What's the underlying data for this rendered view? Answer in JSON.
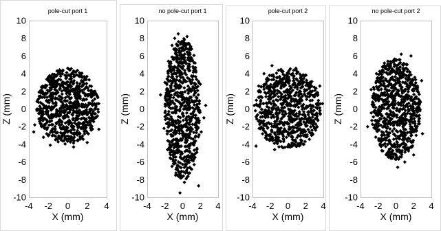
{
  "chart_data": [
    {
      "type": "scatter",
      "title": "pole-cut port 1",
      "xlabel": "X (mm)",
      "ylabel": "Z (mm)",
      "xlim": [
        -4,
        4
      ],
      "ylim": [
        -10,
        10
      ],
      "x_ticks": [
        "-4",
        "-2",
        "0",
        "2",
        "4"
      ],
      "y_ticks": [
        "10",
        "8",
        "6",
        "4",
        "2",
        "0",
        "-2",
        "-4",
        "-6",
        "-8",
        "-10"
      ],
      "grid": false,
      "marker": "filled diamond",
      "marker_color": "#000000",
      "cloud": {
        "x_center": 0.0,
        "x_spread": 3.2,
        "z_center": 0.3,
        "z_spread": 4.3
      },
      "points": [
        [
          -3.4,
          -1.8
        ],
        [
          -3.1,
          1.0
        ],
        [
          -2.9,
          -0.5
        ],
        [
          -2.6,
          2.4
        ],
        [
          -2.5,
          -3.2
        ],
        [
          -2.2,
          0.3
        ],
        [
          -2.0,
          3.6
        ],
        [
          -1.8,
          -4.1
        ],
        [
          -1.6,
          1.7
        ],
        [
          -1.3,
          -2.0
        ],
        [
          -1.1,
          4.3
        ],
        [
          -0.9,
          -0.8
        ],
        [
          -0.6,
          2.9
        ],
        [
          -0.4,
          -3.6
        ],
        [
          -0.2,
          0.9
        ],
        [
          0.0,
          4.6
        ],
        [
          0.2,
          -1.4
        ],
        [
          0.4,
          3.1
        ],
        [
          0.6,
          -4.3
        ],
        [
          0.8,
          0.2
        ],
        [
          1.0,
          2.2
        ],
        [
          1.2,
          -2.7
        ],
        [
          1.4,
          4.0
        ],
        [
          1.6,
          -0.3
        ],
        [
          1.8,
          1.5
        ],
        [
          2.0,
          -3.8
        ],
        [
          2.2,
          3.3
        ],
        [
          2.5,
          -1.1
        ],
        [
          2.8,
          2.0
        ],
        [
          3.0,
          0.6
        ],
        [
          3.2,
          -2.3
        ],
        [
          -3.5,
          -2.6
        ]
      ]
    },
    {
      "type": "scatter",
      "title": "no pole-cut port 1",
      "xlabel": "X (mm)",
      "ylabel": "Z (mm)",
      "xlim": [
        -4,
        4
      ],
      "ylim": [
        -10,
        10
      ],
      "x_ticks": [
        "-4",
        "-2",
        "0",
        "2",
        "4"
      ],
      "y_ticks": [
        "10",
        "8",
        "6",
        "4",
        "2",
        "0",
        "-2",
        "-4",
        "-6",
        "-8",
        "-10"
      ],
      "grid": false,
      "marker": "filled diamond",
      "marker_color": "#000000",
      "cloud": {
        "x_center": 0.0,
        "x_spread": 2.0,
        "z_center": 0.0,
        "z_spread": 8.0
      },
      "points": [
        [
          -0.5,
          8.5
        ],
        [
          0.5,
          8.2
        ],
        [
          -1.2,
          7.2
        ],
        [
          1.0,
          6.8
        ],
        [
          0.0,
          7.6
        ],
        [
          -1.6,
          5.4
        ],
        [
          1.4,
          5.2
        ],
        [
          -2.0,
          3.0
        ],
        [
          2.0,
          2.8
        ],
        [
          -1.8,
          0.5
        ],
        [
          1.9,
          -0.4
        ],
        [
          -2.1,
          -2.2
        ],
        [
          2.1,
          -2.6
        ],
        [
          -1.7,
          -4.6
        ],
        [
          1.6,
          -4.9
        ],
        [
          -1.2,
          -6.5
        ],
        [
          1.3,
          -6.3
        ],
        [
          -0.8,
          -7.5
        ],
        [
          0.4,
          -7.9
        ],
        [
          -0.3,
          -9.5
        ],
        [
          1.8,
          -8.7
        ],
        [
          -2.5,
          1.6
        ],
        [
          2.4,
          -1.0
        ],
        [
          0.2,
          -8.3
        ],
        [
          -0.9,
          8.0
        ],
        [
          2.6,
          0.4
        ]
      ]
    },
    {
      "type": "scatter",
      "title": "pole-cut port 2",
      "xlabel": "X (mm)",
      "ylabel": "Z (mm)",
      "xlim": [
        -4,
        4
      ],
      "ylim": [
        -10,
        10
      ],
      "x_ticks": [
        "-4",
        "-2",
        "0",
        "2",
        "4"
      ],
      "y_ticks": [
        "10",
        "8",
        "6",
        "4",
        "2",
        "0",
        "-2",
        "-4",
        "-6",
        "-8",
        "-10"
      ],
      "grid": false,
      "marker": "filled diamond",
      "marker_color": "#000000",
      "cloud": {
        "x_center": 0.0,
        "x_spread": 3.7,
        "z_center": 0.0,
        "z_spread": 4.6
      },
      "points": [
        [
          -3.6,
          -4.2
        ],
        [
          -3.3,
          2.6
        ],
        [
          -3.0,
          -1.5
        ],
        [
          -2.7,
          4.0
        ],
        [
          -2.4,
          -3.0
        ],
        [
          -2.1,
          0.8
        ],
        [
          -1.8,
          4.9
        ],
        [
          -1.5,
          -4.6
        ],
        [
          -1.2,
          2.1
        ],
        [
          -0.9,
          -2.4
        ],
        [
          -0.6,
          4.2
        ],
        [
          -0.3,
          -0.6
        ],
        [
          0.0,
          3.0
        ],
        [
          0.3,
          -4.3
        ],
        [
          0.6,
          1.1
        ],
        [
          0.9,
          4.6
        ],
        [
          1.2,
          -1.9
        ],
        [
          1.5,
          3.5
        ],
        [
          1.8,
          -4.0
        ],
        [
          2.1,
          0.3
        ],
        [
          2.4,
          2.3
        ],
        [
          2.7,
          -2.8
        ],
        [
          3.0,
          1.6
        ],
        [
          3.3,
          -0.8
        ],
        [
          3.6,
          2.6
        ],
        [
          3.9,
          0.6
        ],
        [
          -3.8,
          0.4
        ]
      ]
    },
    {
      "type": "scatter",
      "title": "no pole-cut port 2",
      "xlabel": "X (mm)",
      "ylabel": "Z (mm)",
      "xlim": [
        -4,
        4
      ],
      "ylim": [
        -10,
        10
      ],
      "x_ticks": [
        "-4",
        "-2",
        "0",
        "2",
        "4"
      ],
      "y_ticks": [
        "10",
        "8",
        "6",
        "4",
        "2",
        "0",
        "-2",
        "-4",
        "-6",
        "-8",
        "-10"
      ],
      "grid": false,
      "marker": "filled diamond",
      "marker_color": "#000000",
      "cloud": {
        "x_center": 0.0,
        "x_spread": 2.8,
        "z_center": 0.0,
        "z_spread": 5.8
      },
      "points": [
        [
          -3.2,
          -2.0
        ],
        [
          -2.8,
          2.2
        ],
        [
          -2.5,
          -0.3
        ],
        [
          -2.2,
          4.0
        ],
        [
          -1.9,
          -3.6
        ],
        [
          -1.6,
          1.1
        ],
        [
          -1.3,
          5.2
        ],
        [
          -1.0,
          -5.0
        ],
        [
          -0.7,
          2.9
        ],
        [
          -0.4,
          -2.5
        ],
        [
          -0.1,
          5.5
        ],
        [
          0.2,
          -6.6
        ],
        [
          0.5,
          0.6
        ],
        [
          0.8,
          4.6
        ],
        [
          1.1,
          -4.1
        ],
        [
          1.4,
          2.4
        ],
        [
          1.7,
          6.0
        ],
        [
          2.0,
          -5.2
        ],
        [
          2.3,
          1.2
        ],
        [
          2.6,
          -1.4
        ],
        [
          2.9,
          3.2
        ],
        [
          1.0,
          -6.0
        ],
        [
          -0.6,
          -4.5
        ],
        [
          0.6,
          6.2
        ],
        [
          3.0,
          -2.8
        ]
      ]
    }
  ]
}
